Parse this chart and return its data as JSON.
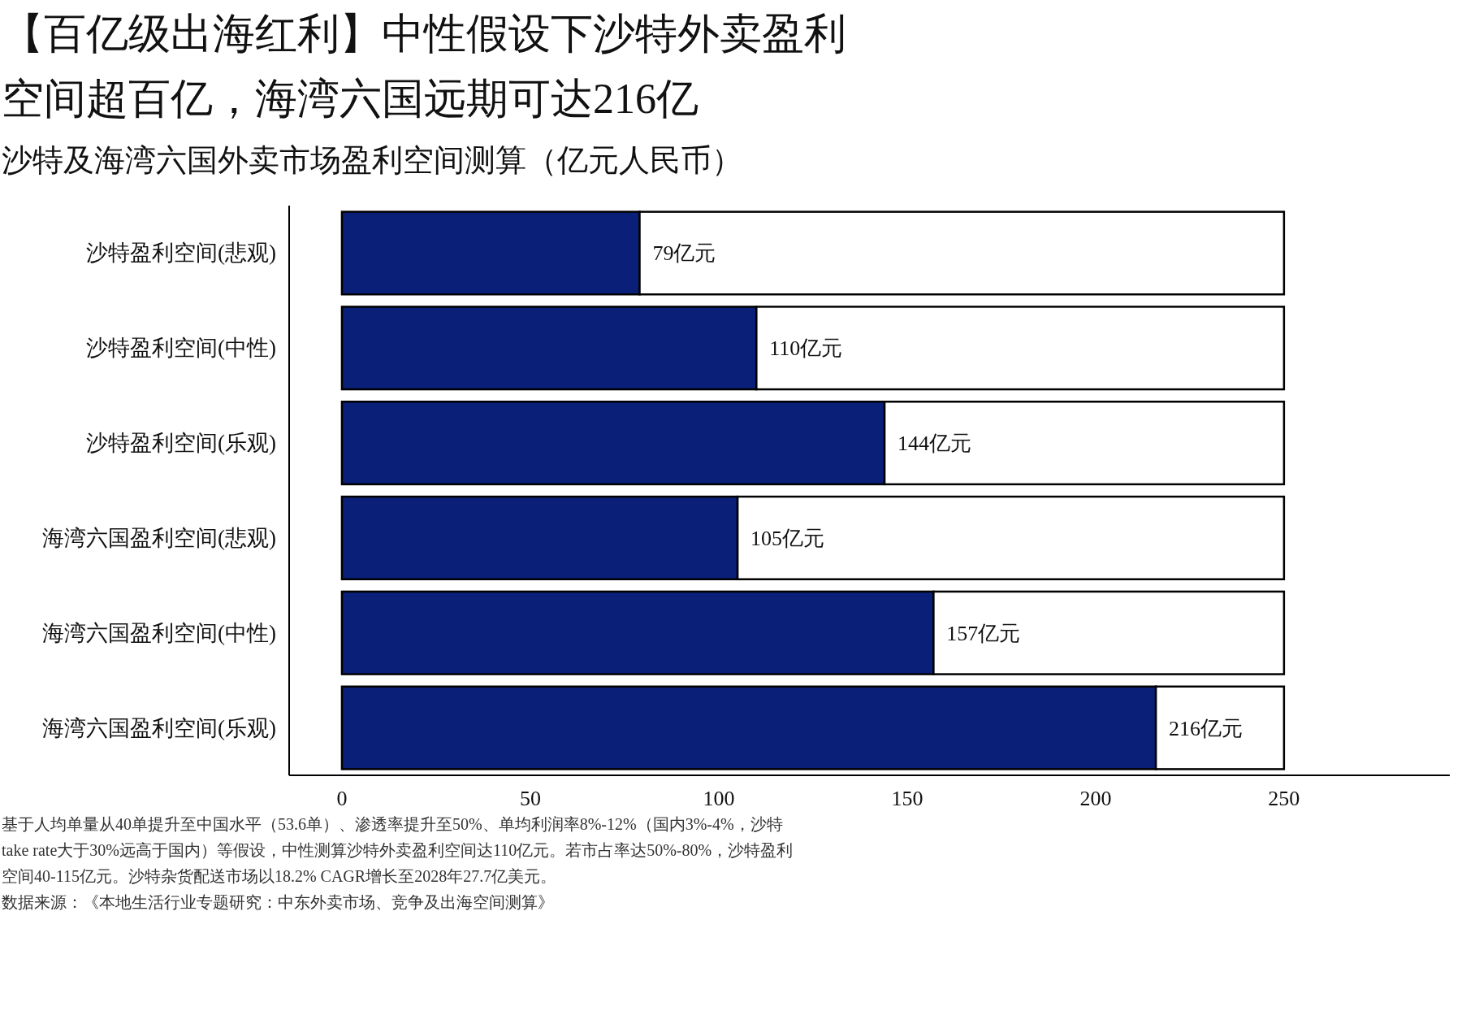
{
  "chart_data": {
    "type": "bar",
    "orientation": "horizontal",
    "stacked": true,
    "title": "【百亿级出海红利】中性假设下沙特外卖盈利空间超百亿，海湾六国远期可达216亿",
    "subtitle": "沙特及海湾六国外卖市场盈利空间测算（亿元人民币）",
    "categories": [
      "沙特盈利空间(悲观)",
      "沙特盈利空间(中性)",
      "沙特盈利空间(乐观)",
      "海湾六国盈利空间(悲观)",
      "海湾六国盈利空间(中性)",
      "海湾六国盈利空间(乐观)"
    ],
    "series": [
      {
        "color": "#0a1f78",
        "values": [
          79,
          110,
          144,
          105,
          157,
          216
        ],
        "value_labels": [
          "79亿元",
          "110亿元",
          "144亿元",
          "105亿元",
          "157亿元",
          "216亿元"
        ]
      },
      {
        "color": "#ffffff",
        "values": [
          171,
          140,
          106,
          145,
          93,
          34
        ]
      }
    ],
    "xlim": [
      -14,
      294
    ],
    "xticks": [
      0,
      50,
      100,
      150,
      200,
      250
    ],
    "grid": false,
    "annotations": [
      "基于人均单量从40单提升至中国水平（53.6单）、渗透率提升至50%、单均利润率8%-12%（国内3%-4%，沙特take rate大于30%远高于国内）等假设，中性测算沙特外卖盈利空间达110亿元。若市占率达50%-80%，沙特盈利空间40-115亿元。沙特杂货配送市场以18.2% CAGR增长至2028年27.7亿美元。",
      "数据来源：《本地生活行业专题研究：中东外卖市场、竞争及出海空间测算》"
    ]
  }
}
